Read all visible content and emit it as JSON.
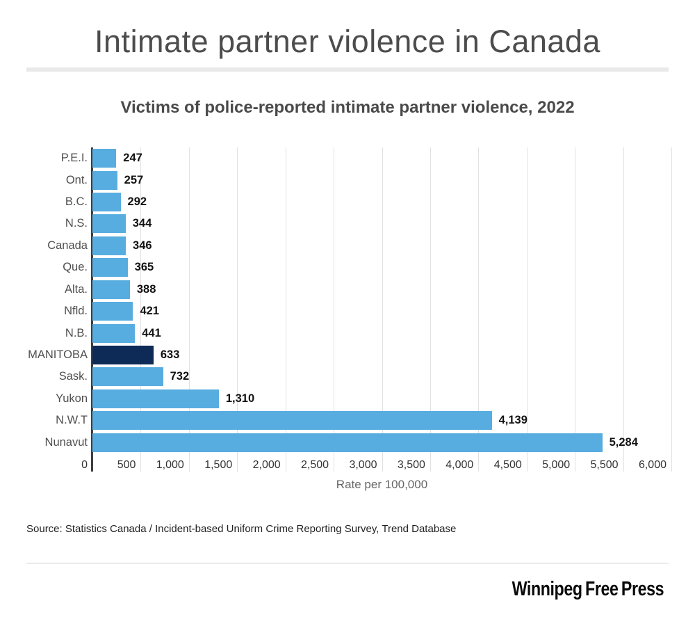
{
  "header": {
    "title": "Intimate partner violence in Canada"
  },
  "chart": {
    "subtitle": "Victims of police-reported intimate partner violence, 2022",
    "xlabel": "Rate per 100,000"
  },
  "chart_data": {
    "type": "bar",
    "orientation": "horizontal",
    "title": "Victims of police-reported intimate partner violence, 2022",
    "categories": [
      "P.E.I.",
      "Ont.",
      "B.C.",
      "N.S.",
      "Canada",
      "Que.",
      "Alta.",
      "Nfld.",
      "N.B.",
      "MANITOBA",
      "Sask.",
      "Yukon",
      "N.W.T",
      "Nunavut"
    ],
    "values": [
      247,
      257,
      292,
      344,
      346,
      365,
      388,
      421,
      441,
      633,
      732,
      1310,
      4139,
      5284
    ],
    "value_labels": [
      "247",
      "257",
      "292",
      "344",
      "346",
      "365",
      "388",
      "421",
      "441",
      "633",
      "732",
      "1,310",
      "4,139",
      "5,284"
    ],
    "highlight_category": "MANITOBA",
    "highlight_index": 9,
    "xlabel": "Rate per 100,000",
    "xlim": [
      0,
      6000
    ],
    "xticks": [
      0,
      500,
      1000,
      1500,
      2000,
      2500,
      3000,
      3500,
      4000,
      4500,
      5000,
      5500,
      6000
    ],
    "xtick_labels": [
      "0",
      "500",
      "1,000",
      "1,500",
      "2,000",
      "2,500",
      "3,000",
      "3,500",
      "4,000",
      "4,500",
      "5,000",
      "5,500",
      "6,000"
    ],
    "grid": "vertical",
    "legend": "none",
    "bar_color": "#58ade0",
    "highlight_color": "#0d2b56"
  },
  "footer": {
    "source": "Source: Statistics Canada / Incident-based Uniform Crime Reporting Survey, Trend Database",
    "logo": "Winnipeg Free Press"
  }
}
